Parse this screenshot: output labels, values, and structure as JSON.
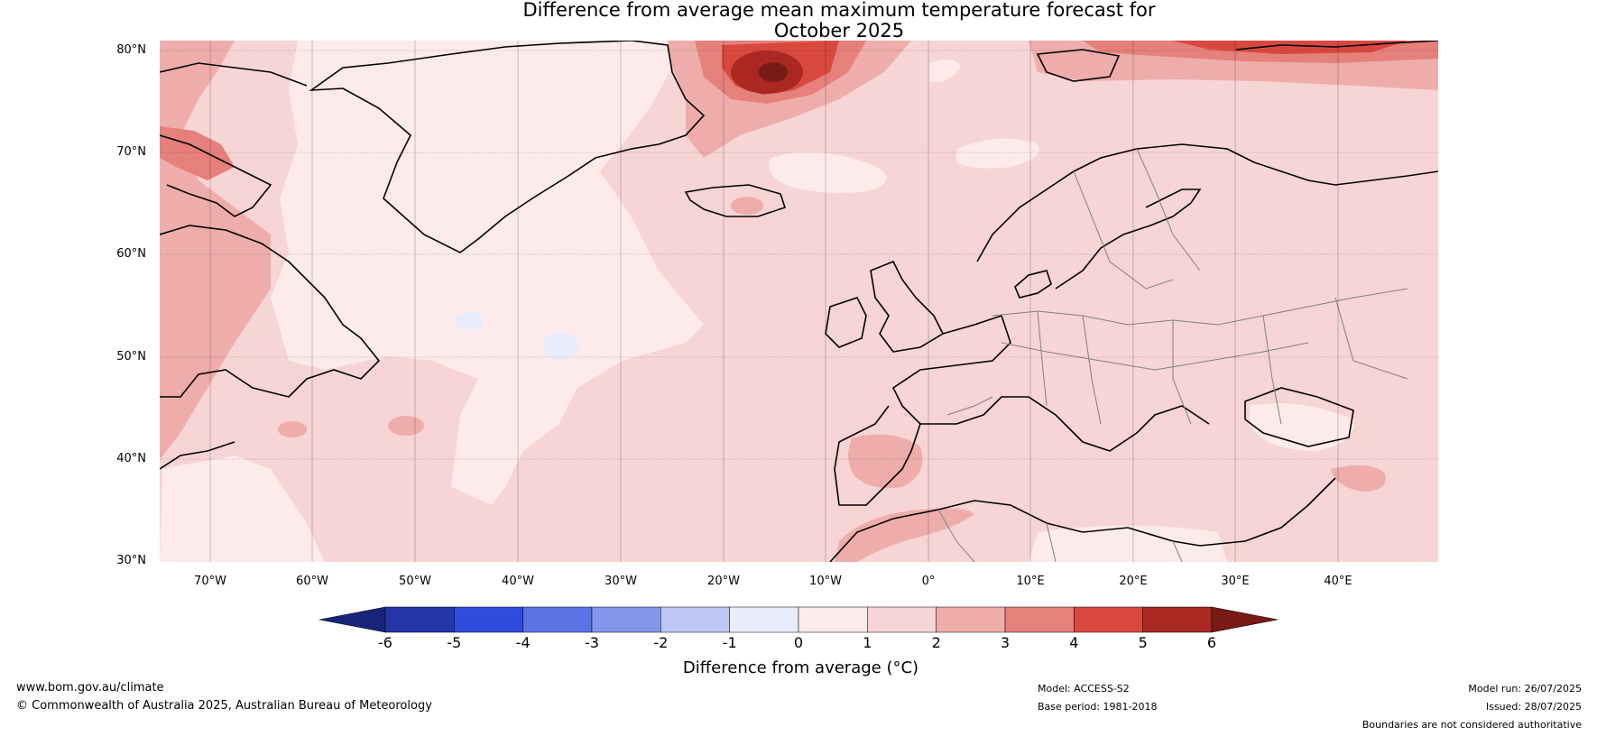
{
  "title": {
    "line1": "Difference from average mean maximum temperature forecast for",
    "line2": "October 2025"
  },
  "map": {
    "lat_labels": [
      "80°N",
      "70°N",
      "60°N",
      "50°N",
      "40°N",
      "30°N"
    ],
    "lon_labels": [
      "70°W",
      "60°W",
      "50°W",
      "40°W",
      "30°W",
      "20°W",
      "10°W",
      "0°",
      "10°E",
      "20°E",
      "30°E",
      "40°E"
    ]
  },
  "colorbar": {
    "ticks": [
      "-6",
      "-5",
      "-4",
      "-3",
      "-2",
      "-1",
      "0",
      "1",
      "2",
      "3",
      "4",
      "5",
      "6"
    ],
    "colors": [
      "#2536a8",
      "#2f4ddc",
      "#5b73e4",
      "#8596ea",
      "#bfc8f4",
      "#e9ecfb",
      "#fcebea",
      "#f6d5d4",
      "#eeadab",
      "#e5807b",
      "#d9483e",
      "#aa2822"
    ],
    "under_color": "#182479",
    "over_color": "#7a1a17",
    "label": "Difference from average (°C)"
  },
  "footer": {
    "website": "www.bom.gov.au/climate",
    "copyright": "© Commonwealth of Australia 2025, Australian Bureau of Meteorology",
    "model": "Model: ACCESS-S2",
    "base_period": "Base period: 1981-2018",
    "model_run": "Model run: 26/07/2025",
    "issued": "Issued: 28/07/2025",
    "disclaimer": "Boundaries are not considered authoritative"
  }
}
